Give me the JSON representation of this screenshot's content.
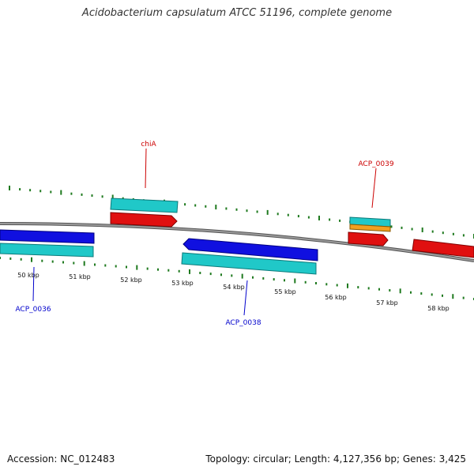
{
  "title": "Acidobacterium capsulatum ATCC 51196, complete genome",
  "footer": {
    "accession": "Accession: NC_012483",
    "stats": "Topology: circular; Length: 4,127,356 bp; Genes: 3,425"
  },
  "colors": {
    "backbone": "#8a8a8a",
    "tick": "#1f7a1f",
    "forward_cds": "#e01010",
    "reverse_cds": "#1010e0",
    "gene": "#20c8c8",
    "rna": "#f0a020",
    "forward_label": "#cc0000",
    "reverse_label": "#0000cc"
  },
  "ticks": [
    "50 kbp",
    "51 kbp",
    "52 kbp",
    "53 kbp",
    "54 kbp",
    "55 kbp",
    "56 kbp",
    "57 kbp",
    "58 kbp"
  ],
  "gene_labels": [
    {
      "text": "chiA",
      "strand": "forward"
    },
    {
      "text": "ACP_0039",
      "strand": "forward"
    },
    {
      "text": "ACP_0036",
      "strand": "reverse"
    },
    {
      "text": "ACP_0038",
      "strand": "reverse"
    }
  ]
}
